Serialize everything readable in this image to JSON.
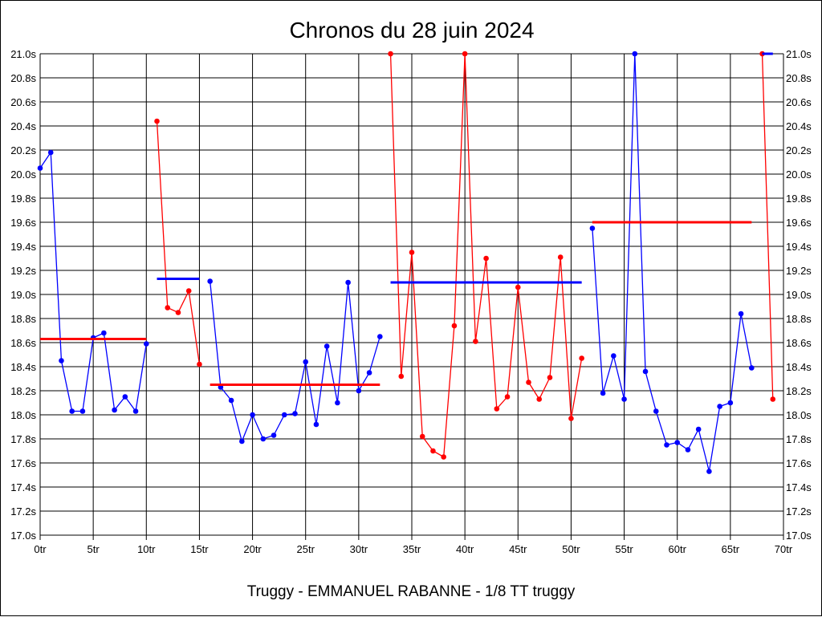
{
  "chart_data": {
    "type": "line",
    "title": "Chronos du 28 juin 2024",
    "subtitle": "Truggy - EMMANUEL RABANNE - 1/8 TT truggy",
    "xlabel": "",
    "ylabel": "",
    "xlim": [
      0,
      70
    ],
    "ylim": [
      17.0,
      21.0
    ],
    "grid": true,
    "x_ticks": [
      0,
      5,
      10,
      15,
      20,
      25,
      30,
      35,
      40,
      45,
      50,
      55,
      60,
      65,
      70
    ],
    "x_tick_suffix": "tr",
    "y_ticks": [
      17.0,
      17.2,
      17.4,
      17.6,
      17.8,
      18.0,
      18.2,
      18.4,
      18.6,
      18.8,
      19.0,
      19.2,
      19.4,
      19.6,
      19.8,
      20.0,
      20.2,
      20.4,
      20.6,
      20.8,
      21.0
    ],
    "y_tick_suffix": "s",
    "colors": {
      "blue": "#0000ff",
      "red": "#ff0000",
      "grid": "#000000"
    },
    "segments": [
      {
        "color": "blue",
        "start_lap": 0,
        "values": [
          20.05,
          20.18,
          18.45,
          18.03,
          18.03,
          18.64,
          18.68,
          18.04,
          18.15,
          18.03,
          18.59
        ],
        "average": 18.63
      },
      {
        "color": "red",
        "start_lap": 11,
        "values": [
          20.44,
          18.89,
          18.85,
          19.03,
          18.42
        ],
        "average": 19.13
      },
      {
        "color": "blue",
        "start_lap": 16,
        "values": [
          19.11,
          18.23,
          18.12,
          17.78,
          18.0,
          17.8,
          17.83,
          18.0,
          18.01,
          18.44,
          17.92,
          18.57,
          18.1,
          19.1,
          18.2,
          18.35,
          18.65
        ],
        "average": 18.25
      },
      {
        "color": "red",
        "start_lap": 33,
        "values": [
          21.0,
          18.32,
          19.35,
          17.82,
          17.7,
          17.65,
          18.74,
          21.0,
          18.61,
          19.3,
          18.05,
          18.15,
          19.06,
          18.27,
          18.13,
          18.31,
          19.31,
          17.97,
          18.47
        ],
        "average": 19.1
      },
      {
        "color": "blue",
        "start_lap": 52,
        "values": [
          19.55,
          18.18,
          18.49,
          18.13,
          21.0,
          18.36,
          18.03,
          17.75,
          17.77,
          17.71,
          17.88,
          17.53,
          18.07,
          18.1,
          18.84,
          18.39
        ],
        "average": 19.6
      },
      {
        "color": "red",
        "start_lap": 68,
        "values": [
          21.0,
          18.13
        ],
        "average": 21.0
      }
    ]
  }
}
